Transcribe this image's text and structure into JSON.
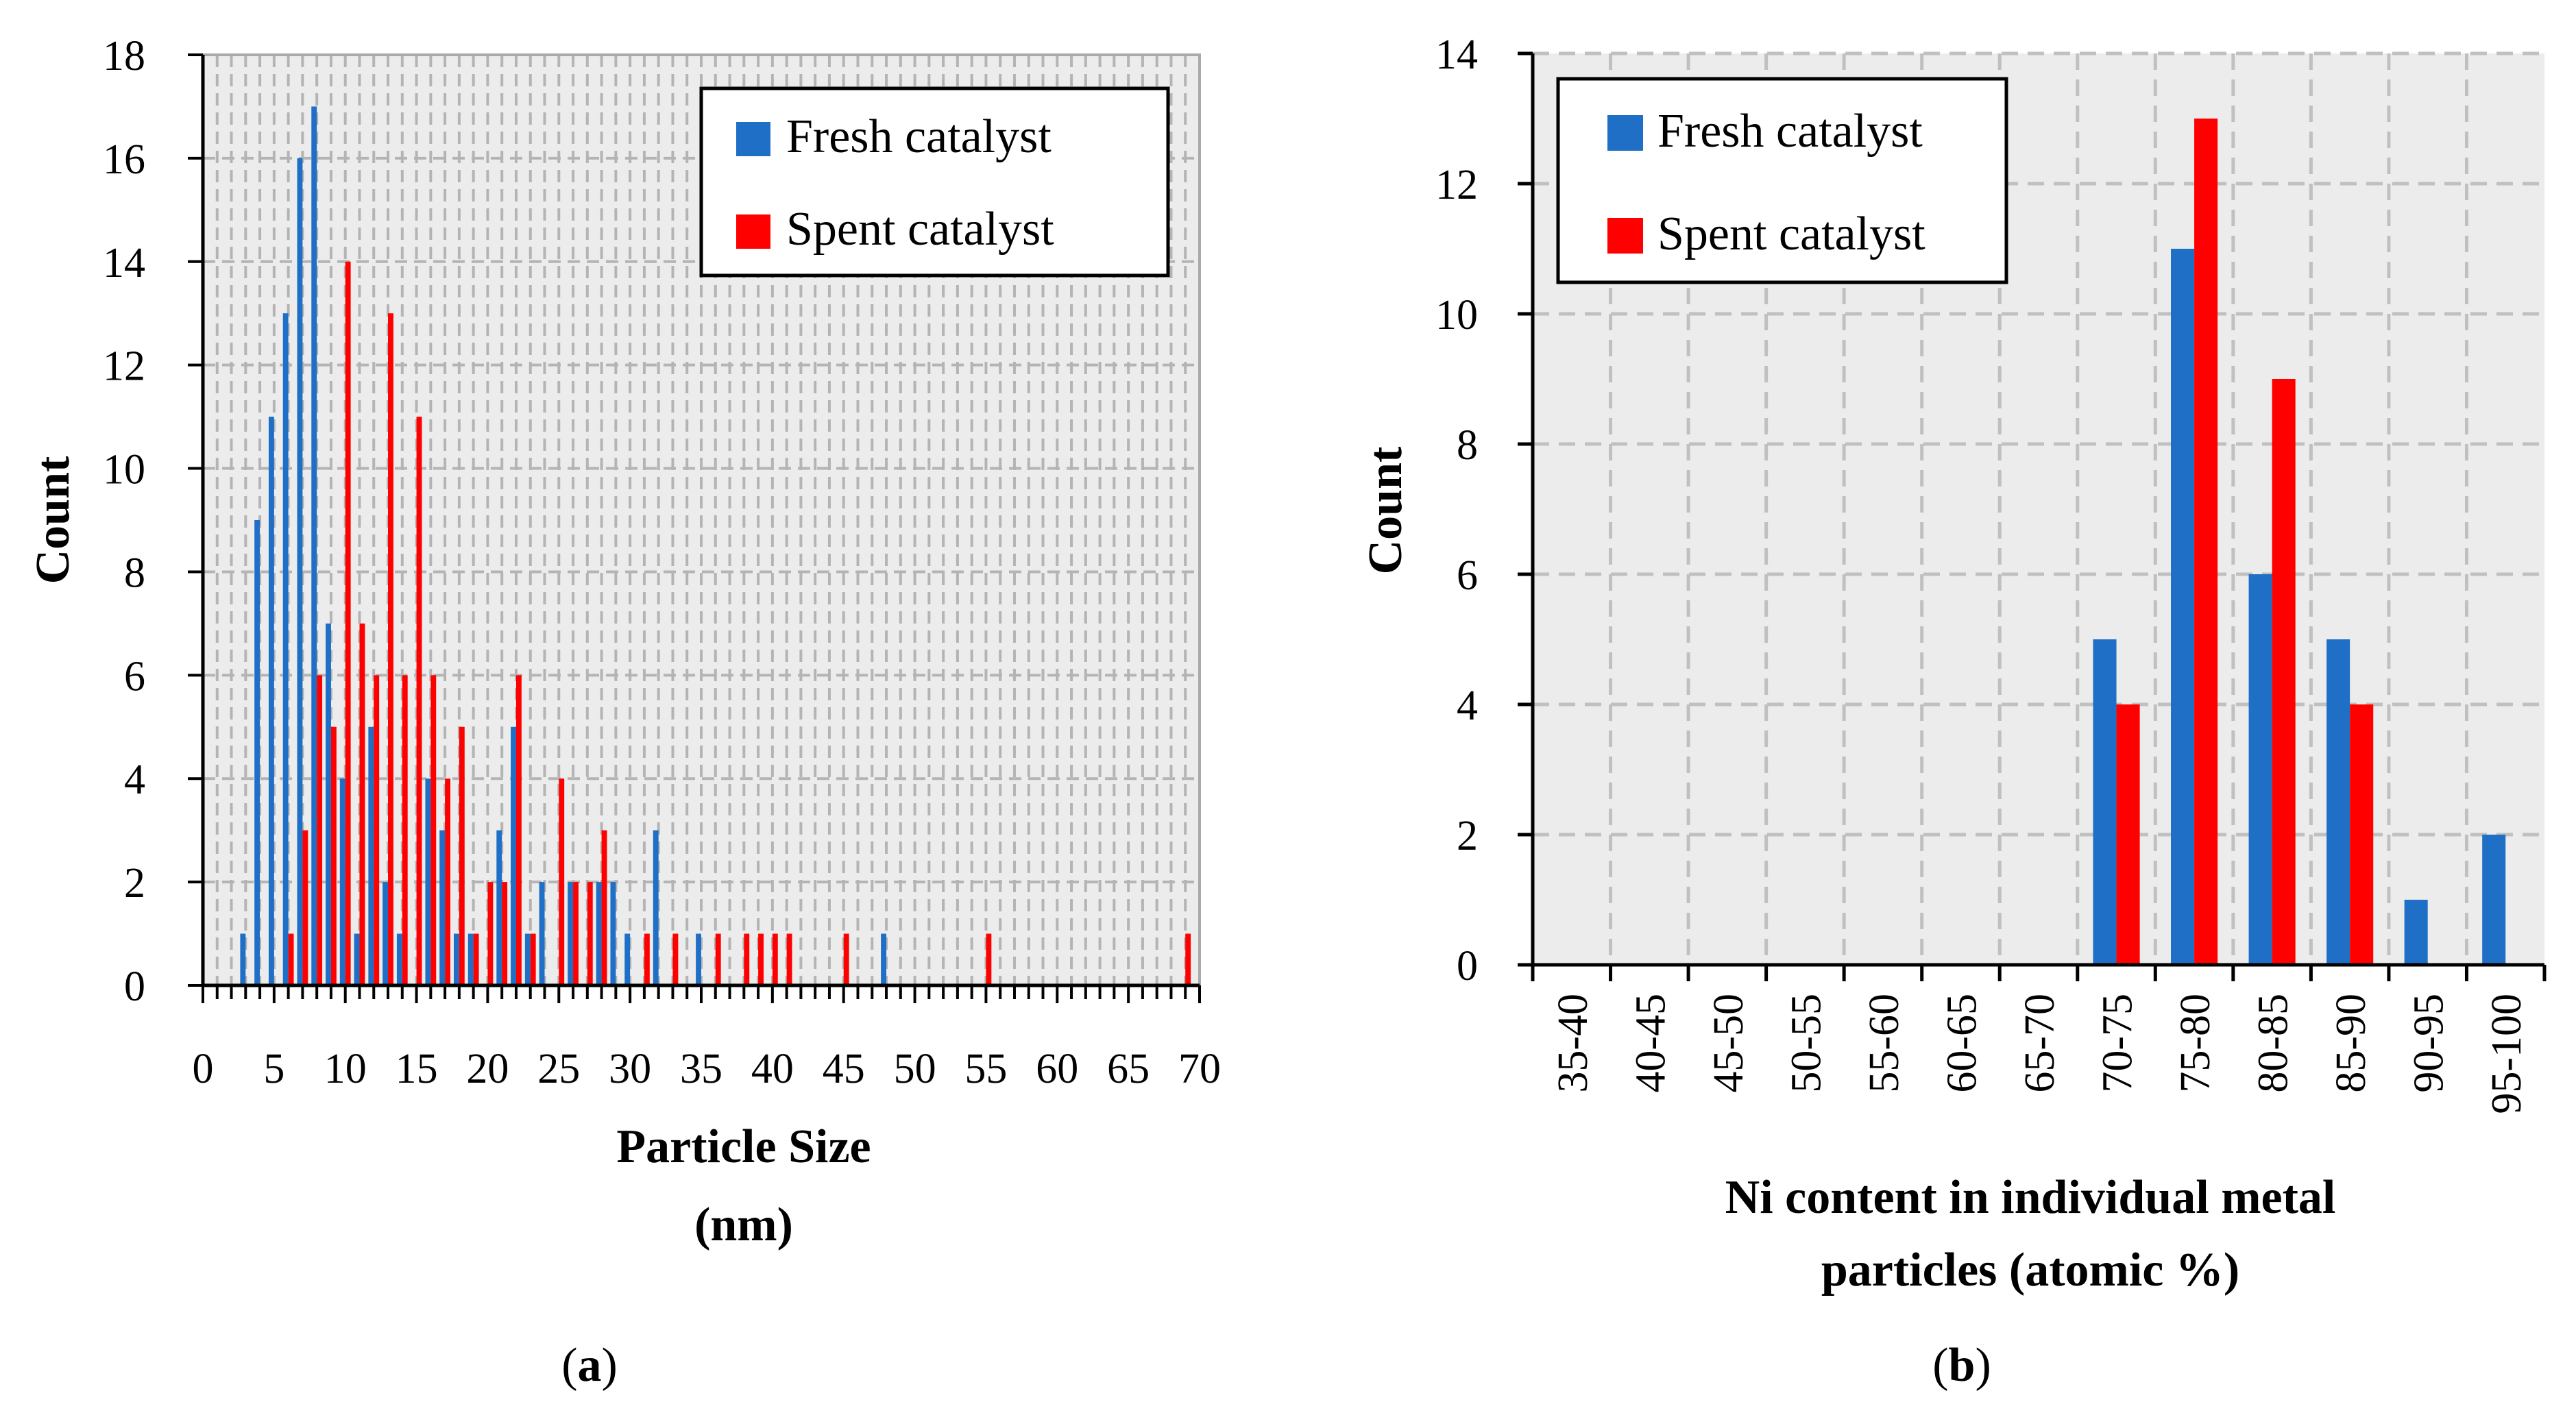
{
  "chart_data": [
    {
      "panel_label": "a",
      "type": "bar",
      "xlabel": "Particle Size",
      "xlabel_unit": "(nm)",
      "ylabel": "Count",
      "xlim": [
        0,
        70
      ],
      "ylim": [
        0,
        18
      ],
      "x_ticks": [
        0,
        5,
        10,
        15,
        20,
        25,
        30,
        35,
        40,
        45,
        50,
        55,
        60,
        65,
        70
      ],
      "y_ticks": [
        0,
        2,
        4,
        6,
        8,
        10,
        12,
        14,
        16,
        18
      ],
      "grid": true,
      "legend_position": "top-right",
      "series": [
        {
          "name": "Fresh catalyst",
          "color": "#1f6fc6",
          "points": [
            [
              3,
              1
            ],
            [
              4,
              9
            ],
            [
              5,
              11
            ],
            [
              6,
              13
            ],
            [
              7,
              16
            ],
            [
              8,
              17
            ],
            [
              9,
              7
            ],
            [
              10,
              4
            ],
            [
              11,
              1
            ],
            [
              12,
              5
            ],
            [
              13,
              2
            ],
            [
              14,
              1
            ],
            [
              16,
              4
            ],
            [
              17,
              3
            ],
            [
              18,
              1
            ],
            [
              19,
              1
            ],
            [
              21,
              3
            ],
            [
              22,
              5
            ],
            [
              23,
              1
            ],
            [
              24,
              2
            ],
            [
              26,
              2
            ],
            [
              28,
              2
            ],
            [
              29,
              2
            ],
            [
              30,
              1
            ],
            [
              32,
              3
            ],
            [
              35,
              1
            ],
            [
              48,
              1
            ]
          ]
        },
        {
          "name": "Spent catalyst",
          "color": "#ff0000",
          "points": [
            [
              6,
              1
            ],
            [
              7,
              3
            ],
            [
              8,
              6
            ],
            [
              9,
              5
            ],
            [
              10,
              14
            ],
            [
              11,
              7
            ],
            [
              12,
              6
            ],
            [
              13,
              13
            ],
            [
              14,
              6
            ],
            [
              15,
              11
            ],
            [
              16,
              6
            ],
            [
              17,
              4
            ],
            [
              18,
              5
            ],
            [
              19,
              1
            ],
            [
              20,
              2
            ],
            [
              21,
              2
            ],
            [
              22,
              6
            ],
            [
              23,
              1
            ],
            [
              25,
              4
            ],
            [
              26,
              2
            ],
            [
              27,
              2
            ],
            [
              28,
              3
            ],
            [
              31,
              1
            ],
            [
              33,
              1
            ],
            [
              36,
              1
            ],
            [
              38,
              1
            ],
            [
              39,
              1
            ],
            [
              40,
              1
            ],
            [
              41,
              1
            ],
            [
              45,
              1
            ],
            [
              55,
              1
            ],
            [
              69,
              1
            ]
          ]
        }
      ]
    },
    {
      "panel_label": "b",
      "type": "bar",
      "xlabel": "Ni content in individual metal particles (atomic %)",
      "xlabel_lines": [
        "Ni content in individual metal",
        "particles (atomic %)"
      ],
      "ylabel": "Count",
      "categories": [
        "35-40",
        "40-45",
        "45-50",
        "50-55",
        "55-60",
        "60-65",
        "65-70",
        "70-75",
        "75-80",
        "80-85",
        "85-90",
        "90-95",
        "95-100"
      ],
      "ylim": [
        0,
        14
      ],
      "y_ticks": [
        0,
        2,
        4,
        6,
        8,
        10,
        12,
        14
      ],
      "grid": true,
      "legend_position": "top-left",
      "series": [
        {
          "name": "Fresh catalyst",
          "color": "#1f6fc6",
          "values": [
            0,
            0,
            0,
            0,
            0,
            0,
            0,
            5,
            11,
            6,
            5,
            1,
            2
          ]
        },
        {
          "name": "Spent catalyst",
          "color": "#ff0000",
          "values": [
            0,
            0,
            0,
            0,
            0,
            0,
            0,
            4,
            13,
            9,
            4,
            0,
            0
          ]
        }
      ]
    }
  ]
}
